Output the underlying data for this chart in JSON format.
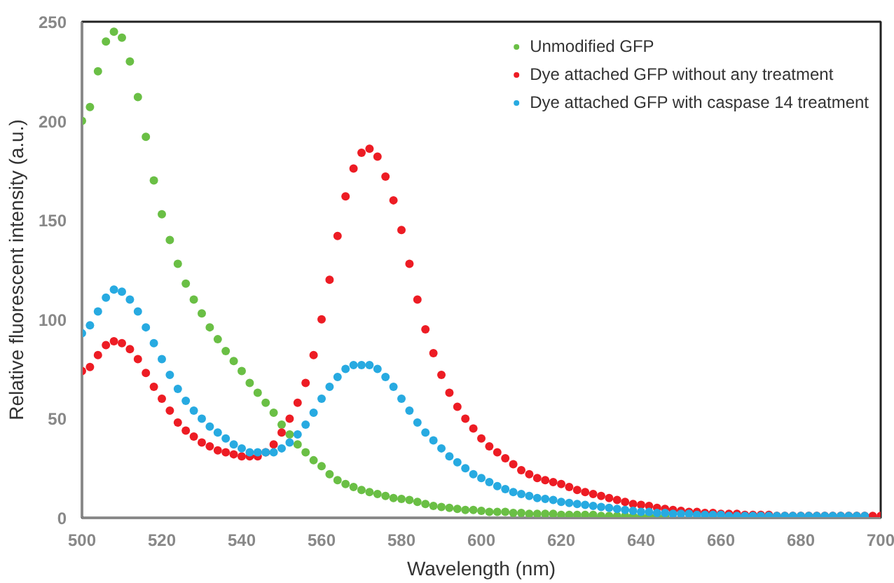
{
  "chart_data": {
    "type": "scatter",
    "xlabel": "Wavelength (nm)",
    "ylabel": "Relative fluorescent intensity (a.u.)",
    "x": [
      500,
      502,
      504,
      506,
      508,
      510,
      512,
      514,
      516,
      518,
      520,
      522,
      524,
      526,
      528,
      530,
      532,
      534,
      536,
      538,
      540,
      542,
      544,
      546,
      548,
      550,
      552,
      554,
      556,
      558,
      560,
      562,
      564,
      566,
      568,
      570,
      572,
      574,
      576,
      578,
      580,
      582,
      584,
      586,
      588,
      590,
      592,
      594,
      596,
      598,
      600,
      602,
      604,
      606,
      608,
      610,
      612,
      614,
      616,
      618,
      620,
      622,
      624,
      626,
      628,
      630,
      632,
      634,
      636,
      638,
      640,
      642,
      644,
      646,
      648,
      650,
      652,
      654,
      656,
      658,
      660,
      662,
      664,
      666,
      668,
      670,
      672,
      674,
      676,
      678,
      680,
      682,
      684,
      686,
      688,
      690,
      692,
      694,
      696,
      698,
      700
    ],
    "xlim": [
      500,
      700
    ],
    "xticks": [
      500,
      520,
      540,
      560,
      580,
      600,
      620,
      640,
      660,
      680,
      700
    ],
    "ylim": [
      0,
      250
    ],
    "yticks": [
      0,
      50,
      100,
      150,
      200,
      250
    ],
    "grid": false,
    "legend": "top right",
    "marker": "circle",
    "series": [
      {
        "name": "Unmodified GFP",
        "color": "#6abf45",
        "values": [
          200,
          207,
          225,
          240,
          245,
          242,
          230,
          212,
          192,
          170,
          153,
          140,
          128,
          118,
          110,
          103,
          96,
          90,
          84,
          79,
          74,
          68,
          63,
          58,
          53,
          47,
          42,
          37,
          33,
          29,
          26,
          22,
          19,
          17,
          15.5,
          14,
          13,
          12,
          11,
          10,
          9.5,
          9,
          8,
          7,
          6,
          5.5,
          5,
          4.5,
          4,
          4,
          3.5,
          3,
          3,
          3,
          2.5,
          2.5,
          2,
          2,
          2,
          2,
          1.5,
          1.5,
          1.5,
          1.5,
          1.5,
          1,
          1,
          1,
          1,
          1,
          1,
          1,
          1,
          1,
          null,
          null,
          null,
          null,
          null,
          null,
          null,
          null,
          null,
          null,
          null,
          null,
          null,
          null,
          null,
          null,
          null,
          null,
          null,
          null,
          null,
          null,
          null,
          null,
          null,
          null,
          null
        ]
      },
      {
        "name": "Dye attached GFP without any treatment",
        "color": "#ed1c24",
        "values": [
          74,
          76,
          82,
          87,
          89,
          88,
          85,
          80,
          73,
          66,
          60,
          54,
          48,
          44,
          41,
          38,
          36,
          34,
          33,
          32,
          31,
          31,
          31,
          33,
          37,
          43,
          50,
          58,
          68,
          82,
          100,
          120,
          142,
          162,
          176,
          184,
          186,
          182,
          172,
          160,
          145,
          128,
          110,
          95,
          83,
          72,
          63,
          56,
          50,
          45,
          40,
          36,
          33,
          30,
          27,
          24,
          22,
          20,
          19,
          18,
          17,
          15.5,
          14,
          13,
          12,
          11,
          10,
          9,
          8,
          7,
          6.5,
          6,
          5,
          4.5,
          4,
          3.5,
          3,
          3,
          2.5,
          2.5,
          2,
          2,
          2,
          1.5,
          1.5,
          1.5,
          1.5,
          1,
          1,
          1,
          1,
          1,
          1,
          1,
          1,
          1,
          1,
          1,
          1,
          1,
          1
        ]
      },
      {
        "name": "Dye attached GFP with caspase 14 treatment",
        "color": "#27aae1",
        "values": [
          93,
          97,
          104,
          111,
          115,
          114,
          110,
          104,
          96,
          88,
          80,
          72,
          65,
          59,
          54,
          50,
          46,
          43,
          40,
          37,
          35,
          33,
          33,
          33,
          33,
          35,
          38,
          42,
          47,
          53,
          60,
          66,
          71,
          75,
          77,
          77,
          77,
          75,
          71,
          66,
          60,
          54,
          48,
          43,
          39,
          35,
          31,
          28,
          25,
          22,
          20,
          18,
          16,
          14.5,
          13,
          12,
          11,
          10,
          9.5,
          9,
          8,
          7.5,
          7,
          6.5,
          6,
          5.5,
          5,
          4.5,
          4,
          3.5,
          3,
          3,
          2.5,
          2.5,
          2,
          2,
          2,
          1.5,
          1.5,
          1.5,
          1.5,
          1,
          1,
          1,
          1,
          1,
          1,
          1,
          1,
          1,
          1,
          1,
          1,
          1,
          1,
          1,
          1,
          1,
          1,
          null,
          null
        ]
      }
    ]
  }
}
